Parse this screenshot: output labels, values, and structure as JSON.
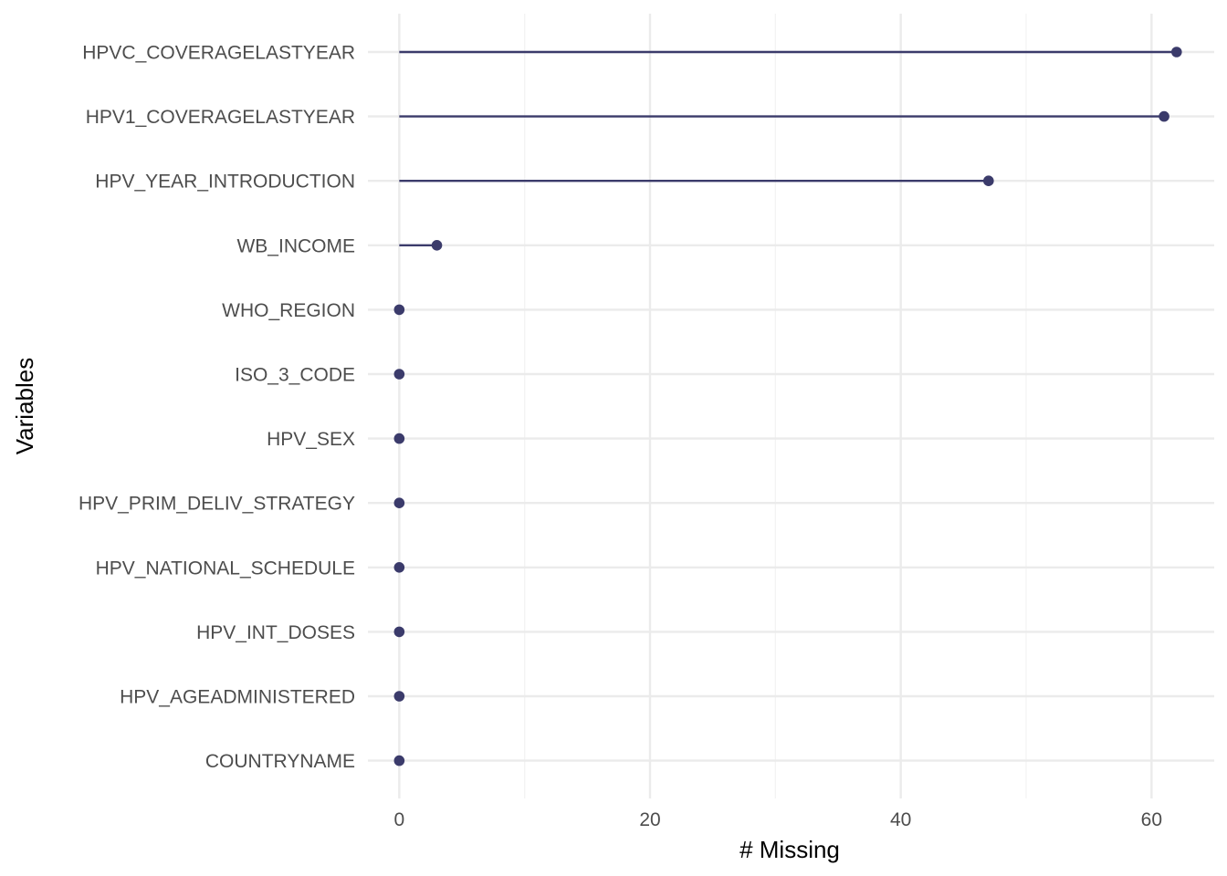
{
  "chart_data": {
    "type": "lollipop",
    "title": "",
    "xlabel": "# Missing",
    "ylabel": "Variables",
    "xlim": [
      -2.5,
      65
    ],
    "x_ticks": [
      0,
      20,
      40,
      60
    ],
    "x_tick_labels": [
      "0",
      "20",
      "40",
      "60"
    ],
    "grid": true,
    "categories": [
      "HPVC_COVERAGELASTYEAR",
      "HPV1_COVERAGELASTYEAR",
      "HPV_YEAR_INTRODUCTION",
      "WB_INCOME",
      "WHO_REGION",
      "ISO_3_CODE",
      "HPV_SEX",
      "HPV_PRIM_DELIV_STRATEGY",
      "HPV_NATIONAL_SCHEDULE",
      "HPV_INT_DOSES",
      "HPV_AGEADMINISTERED",
      "COUNTRYNAME"
    ],
    "values": [
      62,
      61,
      47,
      3,
      0,
      0,
      0,
      0,
      0,
      0,
      0,
      0
    ],
    "colors": {
      "mark": "#3b3b6b",
      "grid_major": "#ebebeb",
      "grid_minor": "#f3f3f3"
    }
  }
}
